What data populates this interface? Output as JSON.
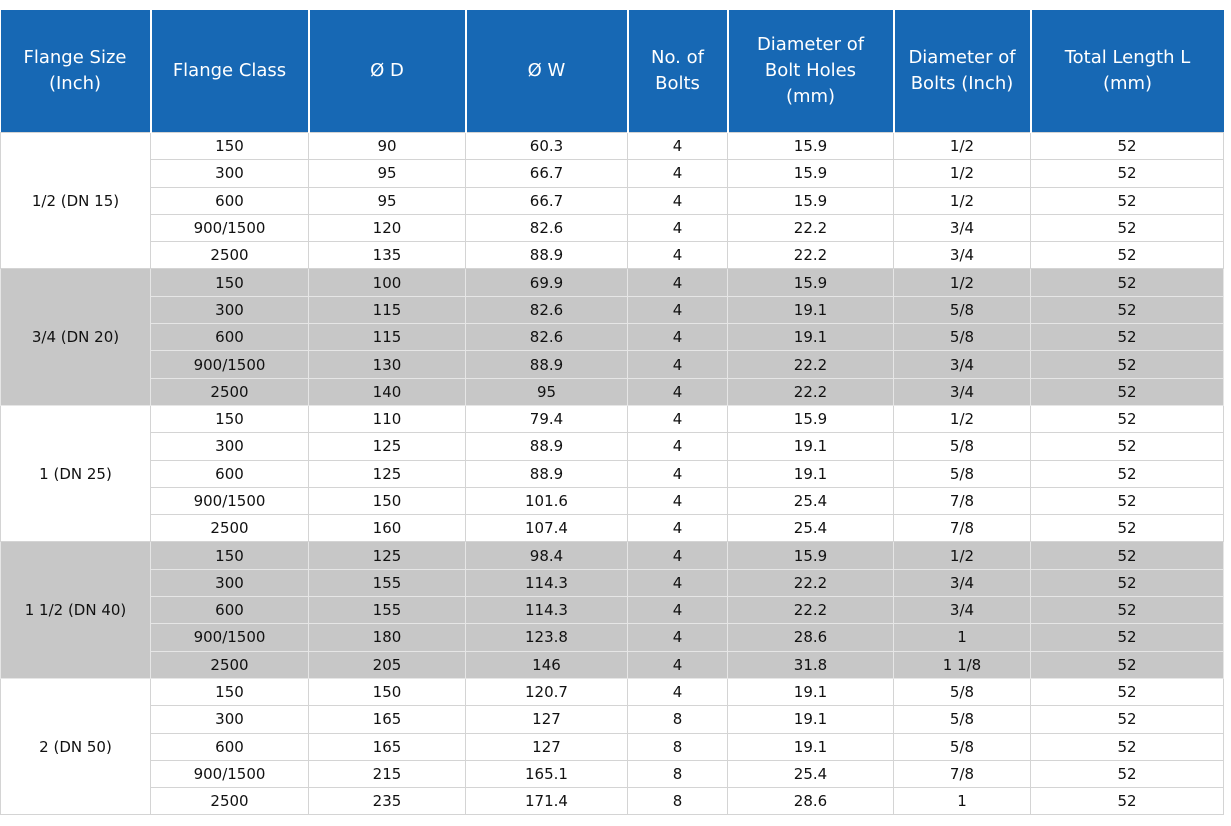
{
  "table": {
    "columns": [
      "Flange Size (Inch)",
      "Flange Class",
      "Ø D",
      "Ø W",
      "No. of Bolts",
      "Diameter of Bolt Holes (mm)",
      "Diameter of Bolts (Inch)",
      "Total Length L (mm)"
    ],
    "groups": [
      {
        "size": "1/2 (DN 15)",
        "rows": [
          [
            "150",
            "90",
            "60.3",
            "4",
            "15.9",
            "1/2",
            "52"
          ],
          [
            "300",
            "95",
            "66.7",
            "4",
            "15.9",
            "1/2",
            "52"
          ],
          [
            "600",
            "95",
            "66.7",
            "4",
            "15.9",
            "1/2",
            "52"
          ],
          [
            "900/1500",
            "120",
            "82.6",
            "4",
            "22.2",
            "3/4",
            "52"
          ],
          [
            "2500",
            "135",
            "88.9",
            "4",
            "22.2",
            "3/4",
            "52"
          ]
        ]
      },
      {
        "size": "3/4 (DN 20)",
        "rows": [
          [
            "150",
            "100",
            "69.9",
            "4",
            "15.9",
            "1/2",
            "52"
          ],
          [
            "300",
            "115",
            "82.6",
            "4",
            "19.1",
            "5/8",
            "52"
          ],
          [
            "600",
            "115",
            "82.6",
            "4",
            "19.1",
            "5/8",
            "52"
          ],
          [
            "900/1500",
            "130",
            "88.9",
            "4",
            "22.2",
            "3/4",
            "52"
          ],
          [
            "2500",
            "140",
            "95",
            "4",
            "22.2",
            "3/4",
            "52"
          ]
        ]
      },
      {
        "size": "1 (DN 25)",
        "rows": [
          [
            "150",
            "110",
            "79.4",
            "4",
            "15.9",
            "1/2",
            "52"
          ],
          [
            "300",
            "125",
            "88.9",
            "4",
            "19.1",
            "5/8",
            "52"
          ],
          [
            "600",
            "125",
            "88.9",
            "4",
            "19.1",
            "5/8",
            "52"
          ],
          [
            "900/1500",
            "150",
            "101.6",
            "4",
            "25.4",
            "7/8",
            "52"
          ],
          [
            "2500",
            "160",
            "107.4",
            "4",
            "25.4",
            "7/8",
            "52"
          ]
        ]
      },
      {
        "size": "1 1/2 (DN 40)",
        "rows": [
          [
            "150",
            "125",
            "98.4",
            "4",
            "15.9",
            "1/2",
            "52"
          ],
          [
            "300",
            "155",
            "114.3",
            "4",
            "22.2",
            "3/4",
            "52"
          ],
          [
            "600",
            "155",
            "114.3",
            "4",
            "22.2",
            "3/4",
            "52"
          ],
          [
            "900/1500",
            "180",
            "123.8",
            "4",
            "28.6",
            "1",
            "52"
          ],
          [
            "2500",
            "205",
            "146",
            "4",
            "31.8",
            "1 1/8",
            "52"
          ]
        ]
      },
      {
        "size": "2 (DN 50)",
        "rows": [
          [
            "150",
            "150",
            "120.7",
            "4",
            "19.1",
            "5/8",
            "52"
          ],
          [
            "300",
            "165",
            "127",
            "8",
            "19.1",
            "5/8",
            "52"
          ],
          [
            "600",
            "165",
            "127",
            "8",
            "19.1",
            "5/8",
            "52"
          ],
          [
            "900/1500",
            "215",
            "165.1",
            "8",
            "25.4",
            "7/8",
            "52"
          ],
          [
            "2500",
            "235",
            "171.4",
            "8",
            "28.6",
            "1",
            "52"
          ]
        ]
      }
    ]
  }
}
